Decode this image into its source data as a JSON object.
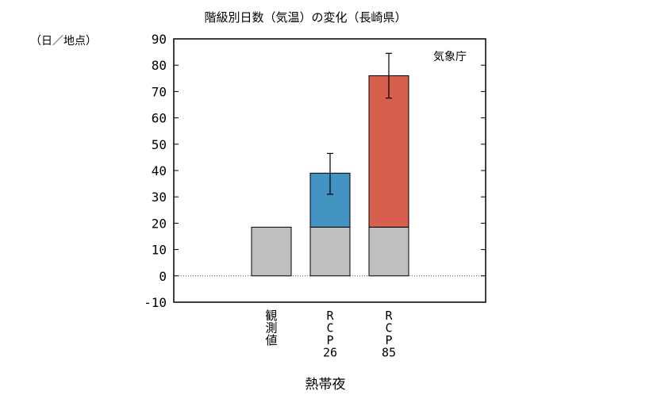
{
  "chart_data": {
    "type": "bar",
    "title": "階級別日数（気温）の変化（長崎県）",
    "ylabel": "（日／地点）",
    "xlabel": "熱帯夜",
    "source": "気象庁",
    "ylim": [
      -10,
      90
    ],
    "yticks": [
      -10,
      0,
      10,
      20,
      30,
      40,
      50,
      60,
      70,
      80,
      90
    ],
    "grid": false,
    "zero_line": "dotted",
    "categories": [
      "観測値",
      "RCP26",
      "RCP85"
    ],
    "category_label_lines": [
      [
        "観",
        "測",
        "値"
      ],
      [
        "R",
        "C",
        "P",
        "26"
      ],
      [
        "R",
        "C",
        "P",
        "85"
      ]
    ],
    "series": [
      {
        "values": [
          18.5,
          18.5,
          18.5
        ],
        "color": "#bfbfbf"
      },
      {
        "values": [
          null,
          20.5,
          57.5
        ],
        "color": "#4393c3"
      },
      {
        "values": [
          null,
          null,
          null
        ],
        "color": "#d6604d"
      }
    ],
    "stack_colors": [
      "#bfbfbf",
      "#4393c3",
      "#d6604d"
    ],
    "totals": [
      18.5,
      39,
      76
    ],
    "error_bars": [
      null,
      {
        "low": 31,
        "high": 46.5
      },
      {
        "low": 67.5,
        "high": 84.5
      }
    ]
  }
}
